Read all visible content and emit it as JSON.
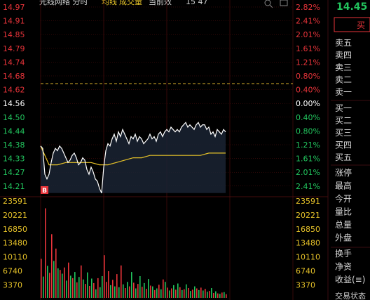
{
  "chart_header": {
    "title": "光线网络 分时",
    "legend_price": "均线",
    "legend_volume": "成交量",
    "current": "当前效",
    "extra": "15 47"
  },
  "price_axis": {
    "labels": [
      "14.97",
      "14.91",
      "14.85",
      "14.79",
      "14.74",
      "14.68",
      "14.62",
      "14.56",
      "14.50",
      "14.44",
      "14.38",
      "14.33",
      "14.27",
      "14.21"
    ],
    "pct_labels": [
      "2.82%",
      "2.41%",
      "2.01%",
      "1.61%",
      "1.21%",
      "0.80%",
      "0.40%",
      "0.00%",
      "0.40%",
      "0.80%",
      "1.21%",
      "1.61%",
      "2.01%",
      "2.41%"
    ],
    "ref_price": "14.56"
  },
  "volume_axis": {
    "labels": [
      "23591",
      "20221",
      "16850",
      "13480",
      "10110",
      "6740",
      "3370"
    ]
  },
  "marker": "B",
  "right_panel": {
    "price": "14.45",
    "action_button": "买",
    "ask_labels": [
      "卖五",
      "卖四",
      "卖三",
      "卖二",
      "卖一"
    ],
    "bid_labels": [
      "买一",
      "买二",
      "买三",
      "买四",
      "买五"
    ],
    "stat_labels": [
      "涨停",
      "最高",
      "今开",
      "量比",
      "总量",
      "外盘",
      "换手",
      "净资",
      "收益(≡)"
    ],
    "bottom_text": "交易状态"
  },
  "colors": {
    "up": "#e8343a",
    "down": "#22c55e",
    "ref": "#ffffff",
    "price_line": "#ffffff",
    "avg_line": "#e6c229",
    "grid": "#5a1010",
    "dashed": "#d7b02a",
    "volume_axis": "#e6c229"
  },
  "chart_data": {
    "type": "line",
    "series": [
      {
        "name": "price",
        "x": [
          0,
          1,
          2,
          3,
          4,
          5,
          6,
          7,
          8,
          9,
          10,
          11,
          12,
          13,
          14,
          15,
          16,
          17,
          18,
          19,
          20,
          21,
          22,
          23,
          24,
          25,
          26,
          27,
          28,
          29,
          30,
          31,
          32,
          33,
          34,
          35,
          36,
          37,
          38,
          39,
          40,
          41,
          42,
          43,
          44,
          45,
          46,
          47,
          48,
          49,
          50,
          51,
          52,
          53,
          54,
          55,
          56,
          57,
          58,
          59,
          60,
          61,
          62,
          63,
          64,
          65,
          66,
          67,
          68,
          69,
          70,
          71,
          72,
          73,
          74,
          75,
          76,
          77,
          78,
          79,
          80,
          81,
          82,
          83,
          84,
          85,
          86,
          87,
          88
        ],
        "values": [
          14.38,
          14.37,
          14.26,
          14.24,
          14.26,
          14.31,
          14.35,
          14.37,
          14.36,
          14.38,
          14.37,
          14.35,
          14.33,
          14.31,
          14.32,
          14.34,
          14.35,
          14.33,
          14.3,
          14.31,
          14.33,
          14.32,
          14.28,
          14.26,
          14.29,
          14.27,
          14.24,
          14.23,
          14.2,
          14.18,
          14.29,
          14.36,
          14.39,
          14.38,
          14.41,
          14.43,
          14.4,
          14.44,
          14.42,
          14.45,
          14.43,
          14.41,
          14.39,
          14.42,
          14.41,
          14.43,
          14.4,
          14.42,
          14.41,
          14.39,
          14.4,
          14.41,
          14.43,
          14.41,
          14.42,
          14.4,
          14.43,
          14.44,
          14.42,
          14.44,
          14.45,
          14.44,
          14.46,
          14.45,
          14.44,
          14.45,
          14.44,
          14.46,
          14.47,
          14.48,
          14.46,
          14.47,
          14.46,
          14.45,
          14.47,
          14.48,
          14.46,
          14.47,
          14.47,
          14.45,
          14.46,
          14.43,
          14.44,
          14.42,
          14.45,
          14.44,
          14.43,
          14.45,
          14.44
        ]
      },
      {
        "name": "avg",
        "x": [
          0,
          4,
          8,
          12,
          16,
          20,
          24,
          28,
          32,
          36,
          40,
          44,
          48,
          52,
          56,
          60,
          64,
          68,
          72,
          76,
          80,
          84,
          88
        ],
        "values": [
          14.38,
          14.3,
          14.3,
          14.31,
          14.31,
          14.31,
          14.31,
          14.3,
          14.3,
          14.31,
          14.32,
          14.33,
          14.33,
          14.34,
          14.34,
          14.34,
          14.34,
          14.34,
          14.34,
          14.34,
          14.35,
          14.35,
          14.35
        ]
      }
    ],
    "volumes": [
      9500,
      5200,
      21800,
      7800,
      6100,
      15500,
      9000,
      12000,
      7200,
      6800,
      5900,
      7400,
      4200,
      8600,
      5400,
      4800,
      6300,
      3800,
      5100,
      7900,
      4500,
      3400,
      6200,
      2900,
      4700,
      3600,
      2100,
      4800,
      2600,
      5300,
      10400,
      3900,
      6500,
      3100,
      4400,
      2800,
      5800,
      2600,
      7900,
      3300,
      2400,
      3900,
      2800,
      6300,
      3700,
      2300,
      3400,
      5300,
      2700,
      3600,
      2200,
      4600,
      3000,
      2800,
      1900,
      2300,
      3200,
      2100,
      4500,
      3900,
      2500,
      1800,
      2300,
      3100,
      2000,
      3500,
      2600,
      1900,
      2100,
      3300,
      2400,
      1700,
      2000,
      2800,
      2300,
      1900,
      2500,
      1800,
      2200,
      1500,
      1700,
      2400,
      1200,
      1600,
      1100,
      1000,
      1300,
      1400,
      900
    ],
    "volume_colors": [
      "r",
      "g",
      "r",
      "g",
      "r",
      "r",
      "g",
      "r",
      "g",
      "r",
      "g",
      "r",
      "g",
      "r",
      "g",
      "r",
      "g",
      "r",
      "g",
      "r",
      "g",
      "r",
      "g",
      "r",
      "g",
      "r",
      "g",
      "r",
      "g",
      "g",
      "r",
      "r",
      "r",
      "g",
      "r",
      "g",
      "r",
      "g",
      "r",
      "g",
      "r",
      "g",
      "r",
      "g",
      "r",
      "g",
      "r",
      "g",
      "r",
      "g",
      "r",
      "g",
      "r",
      "g",
      "r",
      "g",
      "r",
      "g",
      "r",
      "g",
      "r",
      "g",
      "r",
      "g",
      "r",
      "g",
      "r",
      "g",
      "r",
      "g",
      "r",
      "g",
      "r",
      "g",
      "r",
      "g",
      "r",
      "g",
      "r",
      "g",
      "r",
      "g",
      "r",
      "g",
      "r",
      "g",
      "r",
      "g",
      "r"
    ],
    "ylim": [
      14.21,
      14.97
    ],
    "xlim": [
      0,
      240
    ]
  }
}
